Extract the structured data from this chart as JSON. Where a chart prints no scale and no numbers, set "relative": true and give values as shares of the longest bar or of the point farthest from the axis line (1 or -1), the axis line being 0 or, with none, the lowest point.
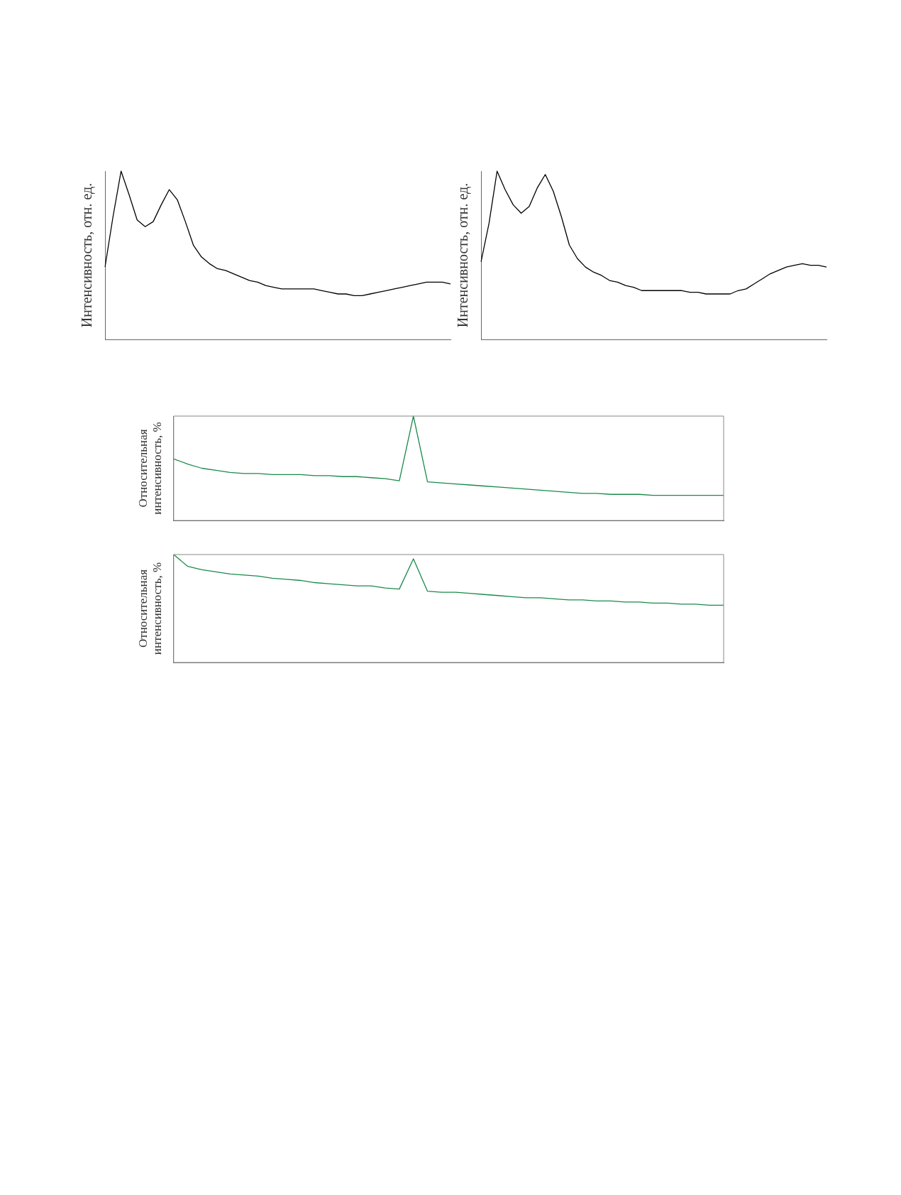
{
  "chart_data": [
    {
      "type": "line",
      "ylabel": "Интенсивность, отн. ед.",
      "relative": true,
      "tick_labels": false,
      "grid": false,
      "legend": false,
      "marker": "none",
      "categories": [
        null,
        null,
        null,
        null,
        null,
        null,
        null,
        null,
        null,
        null,
        null,
        null,
        null,
        null,
        null,
        null,
        null,
        null,
        null,
        null,
        null,
        null,
        null,
        null,
        null,
        null,
        null,
        null,
        null,
        null,
        null,
        null,
        null,
        null,
        null,
        null,
        null,
        null,
        null,
        null,
        null,
        null,
        null,
        null
      ],
      "series": [
        {
          "color": "#000000",
          "values": [
            0.43,
            0.73,
            1,
            0.86,
            0.71,
            0.67,
            0.7,
            0.8,
            0.89,
            0.83,
            0.7,
            0.56,
            0.49,
            0.45,
            0.42,
            0.41,
            0.39,
            0.37,
            0.35,
            0.34,
            0.32,
            0.31,
            0.3,
            0.3,
            0.3,
            0.3,
            0.3,
            0.29,
            0.28,
            0.27,
            0.27,
            0.26,
            0.26,
            0.27,
            0.28,
            0.29,
            0.3,
            0.31,
            0.32,
            0.33,
            0.34,
            0.34,
            0.34,
            0.33
          ]
        }
      ]
    },
    {
      "type": "line",
      "ylabel": "Интенсивность, отн. ед.",
      "relative": true,
      "tick_labels": false,
      "grid": false,
      "legend": false,
      "marker": "none",
      "categories": [
        null,
        null,
        null,
        null,
        null,
        null,
        null,
        null,
        null,
        null,
        null,
        null,
        null,
        null,
        null,
        null,
        null,
        null,
        null,
        null,
        null,
        null,
        null,
        null,
        null,
        null,
        null,
        null,
        null,
        null,
        null,
        null,
        null,
        null,
        null,
        null,
        null,
        null,
        null,
        null,
        null,
        null,
        null,
        null
      ],
      "series": [
        {
          "color": "#000000",
          "values": [
            0.46,
            0.69,
            1,
            0.89,
            0.8,
            0.75,
            0.79,
            0.9,
            0.98,
            0.88,
            0.73,
            0.56,
            0.48,
            0.43,
            0.4,
            0.38,
            0.35,
            0.34,
            0.32,
            0.31,
            0.29,
            0.29,
            0.29,
            0.29,
            0.29,
            0.29,
            0.28,
            0.28,
            0.27,
            0.27,
            0.27,
            0.27,
            0.29,
            0.3,
            0.33,
            0.36,
            0.39,
            0.41,
            0.43,
            0.44,
            0.45,
            0.44,
            0.44,
            0.43
          ]
        }
      ]
    },
    {
      "type": "line",
      "ylabel": "Относительная интенсивность, %",
      "relative": true,
      "tick_labels": false,
      "grid": false,
      "legend": false,
      "marker": "none",
      "categories": [
        null,
        null,
        null,
        null,
        null,
        null,
        null,
        null,
        null,
        null,
        null,
        null,
        null,
        null,
        null,
        null,
        null,
        null,
        null,
        null,
        null,
        null,
        null,
        null,
        null,
        null,
        null,
        null,
        null,
        null,
        null,
        null,
        null,
        null,
        null,
        null,
        null,
        null,
        null,
        null
      ],
      "series": [
        {
          "color": "#1a8a4a",
          "values": [
            0.59,
            0.54,
            0.5,
            0.48,
            0.46,
            0.45,
            0.45,
            0.44,
            0.44,
            0.44,
            0.43,
            0.43,
            0.42,
            0.42,
            0.41,
            0.4,
            0.38,
            1,
            0.37,
            0.36,
            0.35,
            0.34,
            0.33,
            0.32,
            0.31,
            0.3,
            0.29,
            0.28,
            0.27,
            0.26,
            0.26,
            0.25,
            0.25,
            0.25,
            0.24,
            0.24,
            0.24,
            0.24,
            0.24,
            0.24
          ]
        }
      ]
    },
    {
      "type": "line",
      "ylabel": "Относительная интенсивность, %",
      "relative": true,
      "tick_labels": false,
      "grid": false,
      "legend": false,
      "marker": "none",
      "categories": [
        null,
        null,
        null,
        null,
        null,
        null,
        null,
        null,
        null,
        null,
        null,
        null,
        null,
        null,
        null,
        null,
        null,
        null,
        null,
        null,
        null,
        null,
        null,
        null,
        null,
        null,
        null,
        null,
        null,
        null,
        null,
        null,
        null,
        null,
        null,
        null,
        null,
        null,
        null,
        null
      ],
      "series": [
        {
          "color": "#1a8a4a",
          "values": [
            1,
            0.89,
            0.86,
            0.84,
            0.82,
            0.81,
            0.8,
            0.78,
            0.77,
            0.76,
            0.74,
            0.73,
            0.72,
            0.71,
            0.71,
            0.69,
            0.68,
            0.96,
            0.66,
            0.65,
            0.65,
            0.64,
            0.63,
            0.62,
            0.61,
            0.6,
            0.6,
            0.59,
            0.58,
            0.58,
            0.57,
            0.57,
            0.56,
            0.56,
            0.55,
            0.55,
            0.54,
            0.54,
            0.53,
            0.53
          ]
        }
      ]
    }
  ]
}
